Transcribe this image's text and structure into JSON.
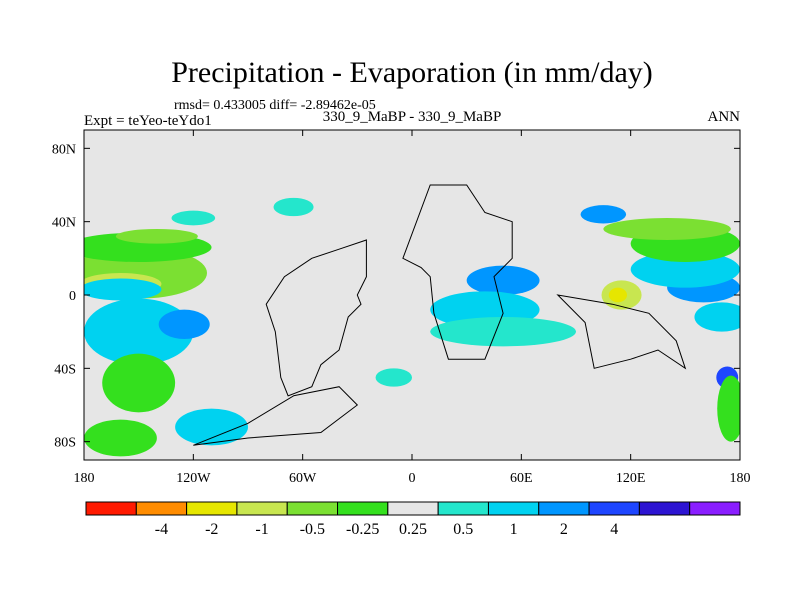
{
  "chart_data": {
    "type": "heatmap",
    "title": "Precipitation - Evaporation (in mm/day)",
    "stats": "rmsd= 0.433005 diff= -2.89462e-05",
    "left_label": "Expt = teYeo-teYdo1",
    "center_label": "330_9_MaBP - 330_9_MaBP",
    "right_label": "ANN",
    "x_ticks": [
      {
        "value": -180,
        "label": "180"
      },
      {
        "value": -120,
        "label": "120W"
      },
      {
        "value": -60,
        "label": "60W"
      },
      {
        "value": 0,
        "label": "0"
      },
      {
        "value": 60,
        "label": "60E"
      },
      {
        "value": 120,
        "label": "120E"
      },
      {
        "value": 180,
        "label": "180"
      }
    ],
    "y_ticks": [
      {
        "value": 80,
        "label": "80N"
      },
      {
        "value": 40,
        "label": "40N"
      },
      {
        "value": 0,
        "label": "0"
      },
      {
        "value": -40,
        "label": "40S"
      },
      {
        "value": -80,
        "label": "80S"
      }
    ],
    "xlim": [
      -180,
      180
    ],
    "ylim": [
      -90,
      90
    ],
    "levels": [
      "-4",
      "-2",
      "-1",
      "-0.5",
      "-0.25",
      "0.25",
      "0.5",
      "1",
      "2",
      "4"
    ],
    "colors": [
      "#ff1a00",
      "#ff8c00",
      "#e6e600",
      "#c8e650",
      "#7be032",
      "#34e01e",
      "#e6e6e6",
      "#24e6cc",
      "#00d2f0",
      "#0096ff",
      "#1e46ff",
      "#2d14d2",
      "#8a1eff"
    ],
    "land_color": "#e6e6e6",
    "regions": [
      {
        "class": 8,
        "lon": -150,
        "lat": -20,
        "w": 60,
        "h": 18
      },
      {
        "class": 9,
        "lon": -125,
        "lat": -16,
        "w": 28,
        "h": 8
      },
      {
        "class": 4,
        "lon": -150,
        "lat": 12,
        "w": 75,
        "h": 14
      },
      {
        "class": 3,
        "lon": -160,
        "lat": 6,
        "w": 45,
        "h": 6
      },
      {
        "class": 8,
        "lon": -160,
        "lat": 3,
        "w": 45,
        "h": 6
      },
      {
        "class": 5,
        "lon": -150,
        "lat": 26,
        "w": 80,
        "h": 8
      },
      {
        "class": 4,
        "lon": -140,
        "lat": 32,
        "w": 45,
        "h": 4
      },
      {
        "class": 7,
        "lon": -120,
        "lat": 42,
        "w": 24,
        "h": 4
      },
      {
        "class": 7,
        "lon": -65,
        "lat": 48,
        "w": 22,
        "h": 5
      },
      {
        "class": 5,
        "lon": -150,
        "lat": -48,
        "w": 40,
        "h": 16
      },
      {
        "class": 8,
        "lon": -110,
        "lat": -72,
        "w": 40,
        "h": 10
      },
      {
        "class": 5,
        "lon": -160,
        "lat": -78,
        "w": 40,
        "h": 10
      },
      {
        "class": 9,
        "lon": 50,
        "lat": 8,
        "w": 40,
        "h": 8
      },
      {
        "class": 8,
        "lon": 40,
        "lat": -8,
        "w": 60,
        "h": 10
      },
      {
        "class": 7,
        "lon": 50,
        "lat": -20,
        "w": 80,
        "h": 8
      },
      {
        "class": 3,
        "lon": 115,
        "lat": 0,
        "w": 22,
        "h": 8
      },
      {
        "class": 2,
        "lon": 113,
        "lat": 0,
        "w": 10,
        "h": 4
      },
      {
        "class": 9,
        "lon": 160,
        "lat": 4,
        "w": 40,
        "h": 8
      },
      {
        "class": 8,
        "lon": 150,
        "lat": 14,
        "w": 60,
        "h": 10
      },
      {
        "class": 5,
        "lon": 150,
        "lat": 28,
        "w": 60,
        "h": 10
      },
      {
        "class": 9,
        "lon": 105,
        "lat": 44,
        "w": 25,
        "h": 5
      },
      {
        "class": 4,
        "lon": 140,
        "lat": 36,
        "w": 70,
        "h": 6
      },
      {
        "class": 8,
        "lon": 170,
        "lat": -12,
        "w": 30,
        "h": 8
      },
      {
        "class": 10,
        "lon": 173,
        "lat": -45,
        "w": 12,
        "h": 6
      },
      {
        "class": 5,
        "lon": 175,
        "lat": -62,
        "w": 15,
        "h": 18
      },
      {
        "class": 7,
        "lon": -10,
        "lat": -45,
        "w": 20,
        "h": 5
      }
    ],
    "land_outlines": [
      [
        [
          -25,
          30
        ],
        [
          -25,
          10
        ],
        [
          -30,
          0
        ],
        [
          -28,
          -5
        ],
        [
          -35,
          -12
        ],
        [
          -40,
          -30
        ],
        [
          -50,
          -38
        ],
        [
          -55,
          -50
        ],
        [
          -68,
          -55
        ],
        [
          -72,
          -45
        ],
        [
          -75,
          -20
        ],
        [
          -80,
          -5
        ],
        [
          -70,
          10
        ],
        [
          -55,
          20
        ],
        [
          -40,
          25
        ],
        [
          -25,
          30
        ]
      ],
      [
        [
          10,
          60
        ],
        [
          30,
          60
        ],
        [
          40,
          45
        ],
        [
          55,
          40
        ],
        [
          55,
          20
        ],
        [
          45,
          10
        ],
        [
          50,
          -10
        ],
        [
          40,
          -35
        ],
        [
          20,
          -35
        ],
        [
          12,
          -10
        ],
        [
          10,
          10
        ],
        [
          5,
          15
        ],
        [
          -5,
          20
        ],
        [
          10,
          60
        ]
      ],
      [
        [
          80,
          0
        ],
        [
          95,
          -15
        ],
        [
          100,
          -40
        ],
        [
          120,
          -35
        ],
        [
          135,
          -30
        ],
        [
          150,
          -40
        ],
        [
          145,
          -25
        ],
        [
          130,
          -10
        ],
        [
          110,
          -5
        ],
        [
          80,
          0
        ]
      ],
      [
        [
          -65,
          -55
        ],
        [
          -40,
          -50
        ],
        [
          -30,
          -60
        ],
        [
          -50,
          -75
        ],
        [
          -90,
          -78
        ],
        [
          -120,
          -82
        ],
        [
          -90,
          -70
        ],
        [
          -65,
          -55
        ]
      ]
    ],
    "colorbar_labels": [
      "-4",
      "-2",
      "-1",
      "-0.5",
      "-0.25",
      "0.25",
      "0.5",
      "1",
      "2",
      "4"
    ]
  }
}
